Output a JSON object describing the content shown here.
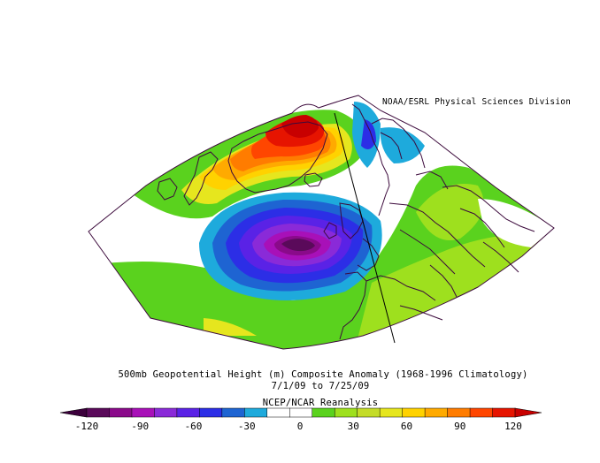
{
  "credit": "NOAA/ESRL Physical Sciences Division",
  "title": "500mb Geopotential Height (m) Composite Anomaly (1968-1996 Climatology)",
  "dates": "7/1/09  to 7/25/09",
  "source": "NCEP/NCAR Reanalysis",
  "colorbar": {
    "ticks": [
      "-120",
      "-90",
      "-60",
      "-30",
      "0",
      "30",
      "60",
      "90",
      "120"
    ],
    "colors": [
      "#5a0a5a",
      "#8a0a8a",
      "#a810b8",
      "#8a2ad8",
      "#5a22e6",
      "#2c2ee6",
      "#1e64d2",
      "#1eaadc",
      "#ffffff",
      "#ffffff",
      "#5ad21e",
      "#9ee01e",
      "#c4dc28",
      "#e6e61e",
      "#ffd200",
      "#ffaa00",
      "#ff7c00",
      "#ff4600",
      "#e61400"
    ],
    "left_arrow_color": "#3c003c",
    "right_arrow_color": "#c80000"
  }
}
